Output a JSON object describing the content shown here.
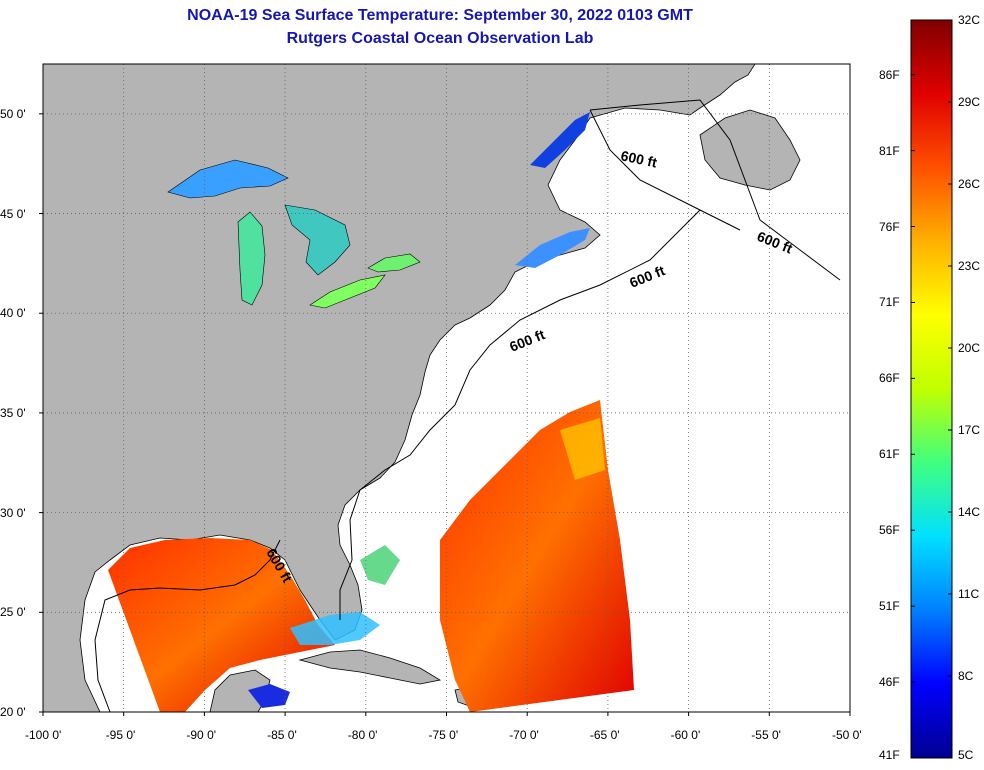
{
  "header": {
    "title": "NOAA-19 Sea Surface Temperature:  September 30, 2022 0103 GMT",
    "subtitle": "Rutgers Coastal Ocean Observation Lab"
  },
  "map": {
    "lon_range": [
      -100,
      -50
    ],
    "lat_range": [
      20,
      52.5
    ],
    "lon_ticks": [
      {
        "value": -100,
        "label": "-100 0'"
      },
      {
        "value": -95,
        "label": "-95 0'"
      },
      {
        "value": -90,
        "label": "-90 0'"
      },
      {
        "value": -85,
        "label": "-85 0'"
      },
      {
        "value": -80,
        "label": "-80 0'"
      },
      {
        "value": -75,
        "label": "-75 0'"
      },
      {
        "value": -70,
        "label": "-70 0'"
      },
      {
        "value": -65,
        "label": "-65 0'"
      },
      {
        "value": -60,
        "label": "-60 0'"
      },
      {
        "value": -55,
        "label": "-55 0'"
      },
      {
        "value": -50,
        "label": "-50 0'"
      }
    ],
    "lat_ticks": [
      {
        "value": 50,
        "label": "50 0'"
      },
      {
        "value": 45,
        "label": "45 0'"
      },
      {
        "value": 40,
        "label": "40 0'"
      },
      {
        "value": 35,
        "label": "35 0'"
      },
      {
        "value": 30,
        "label": "30 0'"
      },
      {
        "value": 25,
        "label": "25 0'"
      },
      {
        "value": 20,
        "label": "20 0'"
      }
    ],
    "contour_labels": [
      "600 ft",
      "600 ft",
      "600 ft",
      "600 ft",
      "600 ft"
    ],
    "land_color": "#b4b4b4",
    "ocean_nodata_color": "#ffffff"
  },
  "colorbar": {
    "celsius_labels": [
      "32C",
      "29C",
      "26C",
      "23C",
      "20C",
      "17C",
      "14C",
      "11C",
      "8C",
      "5C"
    ],
    "fahrenheit_labels": [
      "86F",
      "81F",
      "76F",
      "71F",
      "66F",
      "61F",
      "56F",
      "51F",
      "46F",
      "41F"
    ],
    "range_c": [
      5,
      32
    ],
    "range_f": [
      41,
      89.6
    ],
    "stops": [
      "#000090",
      "#0000ff",
      "#0080ff",
      "#00e0ff",
      "#40ff80",
      "#c0ff00",
      "#ffff00",
      "#ffb000",
      "#ff5000",
      "#e00000",
      "#800000"
    ]
  }
}
